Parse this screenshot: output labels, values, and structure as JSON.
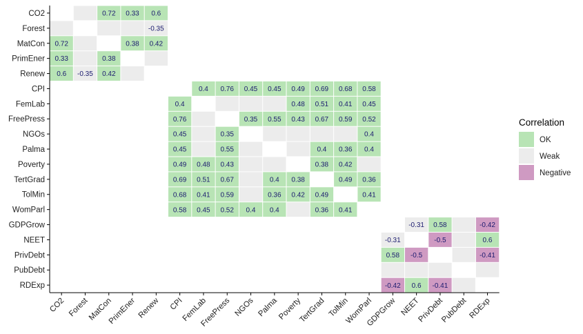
{
  "chart_data": {
    "type": "heatmap",
    "variables": [
      "CO2",
      "Forest",
      "MatCon",
      "PrimEner",
      "Renew",
      "CPI",
      "FemLab",
      "FreePress",
      "NGOs",
      "Palma",
      "Poverty",
      "TertGrad",
      "TolMin",
      "WomParl",
      "GDPGrow",
      "NEET",
      "PrivDebt",
      "PubDebt",
      "RDExp"
    ],
    "blocks": [
      {
        "members": [
          "CO2",
          "Forest",
          "MatCon",
          "PrimEner",
          "Renew"
        ]
      },
      {
        "members": [
          "CPI",
          "FemLab",
          "FreePress",
          "NGOs",
          "Palma",
          "Poverty",
          "TertGrad",
          "TolMin",
          "WomParl"
        ]
      },
      {
        "members": [
          "GDPGrow",
          "NEET",
          "PrivDebt",
          "PubDebt",
          "RDExp"
        ]
      }
    ],
    "cells": [
      {
        "row": "CO2",
        "col": "MatCon",
        "value": 0.72,
        "category": "OK"
      },
      {
        "row": "CO2",
        "col": "PrimEner",
        "value": 0.33,
        "category": "OK"
      },
      {
        "row": "CO2",
        "col": "Renew",
        "value": 0.6,
        "category": "OK"
      },
      {
        "row": "Forest",
        "col": "Renew",
        "value": -0.35,
        "category": "Weak"
      },
      {
        "row": "MatCon",
        "col": "PrimEner",
        "value": 0.38,
        "category": "OK"
      },
      {
        "row": "MatCon",
        "col": "Renew",
        "value": 0.42,
        "category": "OK"
      },
      {
        "row": "CPI",
        "col": "FemLab",
        "value": 0.4,
        "category": "OK"
      },
      {
        "row": "CPI",
        "col": "FreePress",
        "value": 0.76,
        "category": "OK"
      },
      {
        "row": "CPI",
        "col": "NGOs",
        "value": 0.45,
        "category": "OK"
      },
      {
        "row": "CPI",
        "col": "Palma",
        "value": 0.45,
        "category": "OK"
      },
      {
        "row": "CPI",
        "col": "Poverty",
        "value": 0.49,
        "category": "OK"
      },
      {
        "row": "CPI",
        "col": "TertGrad",
        "value": 0.69,
        "category": "OK"
      },
      {
        "row": "CPI",
        "col": "TolMin",
        "value": 0.68,
        "category": "OK"
      },
      {
        "row": "CPI",
        "col": "WomParl",
        "value": 0.58,
        "category": "OK"
      },
      {
        "row": "FemLab",
        "col": "Poverty",
        "value": 0.48,
        "category": "OK"
      },
      {
        "row": "FemLab",
        "col": "TertGrad",
        "value": 0.51,
        "category": "OK"
      },
      {
        "row": "FemLab",
        "col": "TolMin",
        "value": 0.41,
        "category": "OK"
      },
      {
        "row": "FemLab",
        "col": "WomParl",
        "value": 0.45,
        "category": "OK"
      },
      {
        "row": "FreePress",
        "col": "NGOs",
        "value": 0.35,
        "category": "OK"
      },
      {
        "row": "FreePress",
        "col": "Palma",
        "value": 0.55,
        "category": "OK"
      },
      {
        "row": "FreePress",
        "col": "Poverty",
        "value": 0.43,
        "category": "OK"
      },
      {
        "row": "FreePress",
        "col": "TertGrad",
        "value": 0.67,
        "category": "OK"
      },
      {
        "row": "FreePress",
        "col": "TolMin",
        "value": 0.59,
        "category": "OK"
      },
      {
        "row": "FreePress",
        "col": "WomParl",
        "value": 0.52,
        "category": "OK"
      },
      {
        "row": "NGOs",
        "col": "WomParl",
        "value": 0.4,
        "category": "OK"
      },
      {
        "row": "Palma",
        "col": "TertGrad",
        "value": 0.4,
        "category": "OK"
      },
      {
        "row": "Palma",
        "col": "TolMin",
        "value": 0.36,
        "category": "OK"
      },
      {
        "row": "Palma",
        "col": "WomParl",
        "value": 0.4,
        "category": "OK"
      },
      {
        "row": "Poverty",
        "col": "TertGrad",
        "value": 0.38,
        "category": "OK"
      },
      {
        "row": "Poverty",
        "col": "TolMin",
        "value": 0.42,
        "category": "OK"
      },
      {
        "row": "TertGrad",
        "col": "TolMin",
        "value": 0.49,
        "category": "OK"
      },
      {
        "row": "TertGrad",
        "col": "WomParl",
        "value": 0.36,
        "category": "OK"
      },
      {
        "row": "TolMin",
        "col": "WomParl",
        "value": 0.41,
        "category": "OK"
      },
      {
        "row": "GDPGrow",
        "col": "NEET",
        "value": -0.31,
        "category": "Weak"
      },
      {
        "row": "GDPGrow",
        "col": "PrivDebt",
        "value": 0.58,
        "category": "OK"
      },
      {
        "row": "GDPGrow",
        "col": "RDExp",
        "value": -0.42,
        "category": "Negative"
      },
      {
        "row": "NEET",
        "col": "PrivDebt",
        "value": -0.5,
        "category": "Negative"
      },
      {
        "row": "NEET",
        "col": "RDExp",
        "value": 0.6,
        "category": "OK"
      },
      {
        "row": "PrivDebt",
        "col": "RDExp",
        "value": -0.41,
        "category": "Negative"
      }
    ],
    "legend": {
      "title": "Correlation",
      "placement": "right",
      "entries": [
        {
          "label": "OK",
          "color": "#b8e4b5"
        },
        {
          "label": "Weak",
          "color": "#ececec"
        },
        {
          "label": "Negative",
          "color": "#cf9ac2"
        }
      ]
    },
    "title": "",
    "xlabel": "",
    "ylabel": ""
  },
  "colors": {
    "weak_fill": "#ececec",
    "ok_fill": "#b8e4b5",
    "negative_fill": "#cf9ac2",
    "value_text": "#1a1a6e",
    "axis": "#000000",
    "background": "#ffffff"
  }
}
